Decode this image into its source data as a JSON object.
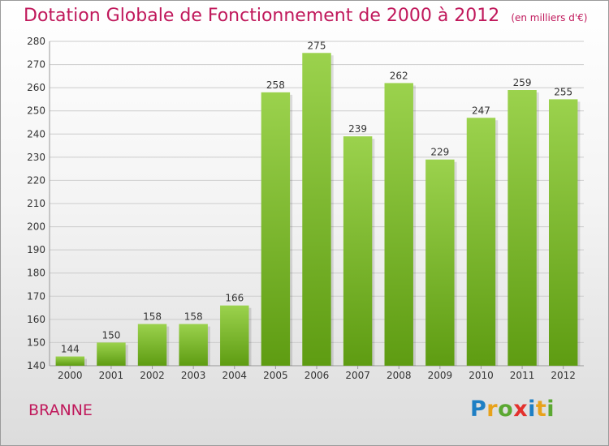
{
  "header": {
    "title": "Dotation Globale de Fonctionnement de 2000 à 2012",
    "unit": "(en milliers d'€)"
  },
  "footer": {
    "place": "BRANNE",
    "logo_letters": [
      {
        "ch": "P",
        "color": "#1e7fc4"
      },
      {
        "ch": "r",
        "color": "#e8a21b"
      },
      {
        "ch": "o",
        "color": "#5ba832"
      },
      {
        "ch": "x",
        "color": "#e3312d"
      },
      {
        "ch": "i",
        "color": "#1e7fc4"
      },
      {
        "ch": "t",
        "color": "#e8a21b"
      },
      {
        "ch": "i",
        "color": "#5ba832"
      }
    ]
  },
  "colors": {
    "bar_light": "#9bd24d",
    "bar_dark": "#5e9c12",
    "grid": "#cccccc",
    "accent": "#c0185b"
  },
  "chart_data": {
    "type": "bar",
    "categories": [
      "2000",
      "2001",
      "2002",
      "2003",
      "2004",
      "2005",
      "2006",
      "2007",
      "2008",
      "2009",
      "2010",
      "2011",
      "2012"
    ],
    "values": [
      144,
      150,
      158,
      158,
      166,
      258,
      275,
      239,
      262,
      229,
      247,
      259,
      255
    ],
    "title": "Dotation Globale de Fonctionnement de 2000 à 2012",
    "subtitle": "(en milliers d'€)",
    "xlabel": "",
    "ylabel": "",
    "ylim": [
      140,
      280
    ],
    "yticks": [
      140,
      150,
      160,
      170,
      180,
      190,
      200,
      210,
      220,
      230,
      240,
      250,
      260,
      270,
      280
    ],
    "grid": true,
    "data_labels": true
  }
}
